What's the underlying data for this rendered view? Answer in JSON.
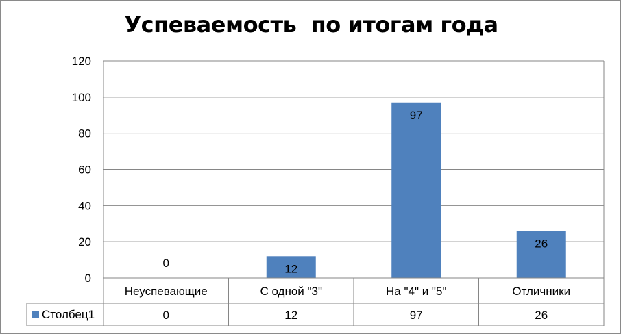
{
  "chart_data": {
    "type": "bar",
    "title": "Успеваемость  по итогам года",
    "categories": [
      "Неуспевающие",
      "С одной \"3\"",
      "На \"4\" и \"5\"",
      "Отличники"
    ],
    "series": [
      {
        "name": "Столбец1",
        "values": [
          0,
          12,
          97,
          26
        ],
        "color": "#4f81bd"
      }
    ],
    "ylim": [
      0,
      120
    ],
    "yticks": [
      "0",
      "20",
      "40",
      "60",
      "80",
      "100",
      "120"
    ],
    "data_labels": [
      "0",
      "12",
      "97",
      "26"
    ],
    "grid": true,
    "legend": "data-table-left",
    "data_table": true
  }
}
